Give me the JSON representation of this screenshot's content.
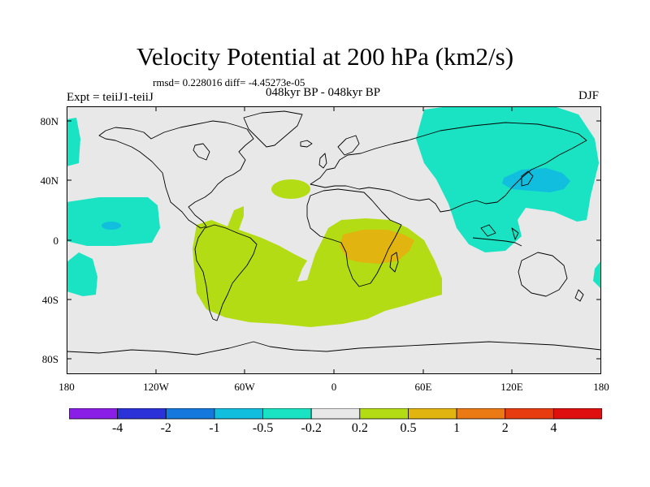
{
  "figure": {
    "title": "Velocity Potential at 200 hPa (km2/s)",
    "stats": "rmsd= 0.228016 diff= -4.45273e-05",
    "expt": "Expt = teiiJ1-teiiJ",
    "period": "048kyr BP - 048kyr BP",
    "season": "DJF"
  },
  "axes": {
    "lat_labels": [
      "80N",
      "40N",
      "0",
      "40S",
      "80S"
    ],
    "lon_labels": [
      "180",
      "120W",
      "60W",
      "0",
      "60E",
      "120E",
      "180"
    ]
  },
  "colorbar": {
    "labels": [
      "-4",
      "-2",
      "-1",
      "-0.5",
      "-0.2",
      "0.2",
      "0.5",
      "1",
      "2",
      "4"
    ],
    "colors": [
      "#8a1ee6",
      "#2a32d8",
      "#1478dc",
      "#12bede",
      "#19e3c3",
      "#e8e8e8",
      "#b4dc14",
      "#e1b40f",
      "#eb7a14",
      "#e63c0f",
      "#e00f0f"
    ]
  },
  "map": {
    "background": "#e8e8e8",
    "coastline_color": "#000000"
  }
}
